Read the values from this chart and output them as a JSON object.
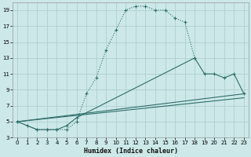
{
  "xlabel": "Humidex (Indice chaleur)",
  "background_color": "#cce8e8",
  "grid_color": "#b0d0d0",
  "line_color": "#2e6e6a",
  "xlim": [
    -0.5,
    23.5
  ],
  "ylim": [
    3,
    20
  ],
  "xticks": [
    0,
    1,
    2,
    3,
    4,
    5,
    6,
    7,
    8,
    9,
    10,
    11,
    12,
    13,
    14,
    15,
    16,
    17,
    18,
    19,
    20,
    21,
    22,
    23
  ],
  "yticks": [
    3,
    5,
    7,
    9,
    11,
    13,
    15,
    17,
    19
  ],
  "curve1_x": [
    0,
    1,
    2,
    3,
    4,
    5,
    6,
    7,
    8,
    9,
    10,
    11,
    12,
    13,
    14,
    15,
    16,
    17,
    18
  ],
  "curve1_y": [
    5.0,
    4.5,
    4.0,
    4.0,
    4.0,
    4.0,
    5.0,
    8.5,
    10.5,
    14.0,
    16.5,
    19.0,
    19.5,
    19.5,
    19.0,
    19.0,
    18.0,
    17.5,
    13.0
  ],
  "curve2_x": [
    0,
    2,
    3,
    4,
    5,
    6,
    18,
    19,
    20,
    21,
    22,
    23
  ],
  "curve2_y": [
    5.0,
    4.0,
    4.0,
    4.0,
    4.5,
    5.5,
    13.0,
    11.0,
    11.0,
    10.5,
    11.0,
    8.5
  ],
  "line3_x": [
    0,
    23
  ],
  "line3_y": [
    5.0,
    8.5
  ],
  "line4_x": [
    0,
    23
  ],
  "line4_y": [
    5.0,
    8.0
  ],
  "figsize": [
    3.2,
    2.0
  ],
  "dpi": 100
}
